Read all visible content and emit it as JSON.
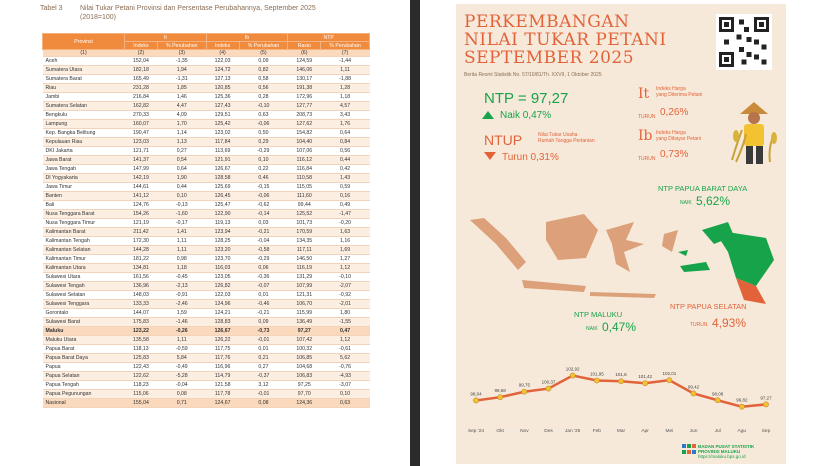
{
  "table": {
    "tabel_no": "Tabel 3",
    "caption": "Nilai Tukar Petani Provinsi dan Persentase Perubahannya, September 2025",
    "caption_sub": "(2018=100)",
    "header_top": [
      "Provinsi",
      "It",
      "Ib",
      "NTP"
    ],
    "header_sub": [
      "Indeks",
      "% Perubahan",
      "Indeks",
      "% Perubahan",
      "Rasio",
      "% Perubahan"
    ],
    "header_idx": [
      "(1)",
      "(2)",
      "(3)",
      "(4)",
      "(5)",
      "(6)",
      "(7)"
    ],
    "rows": [
      [
        "Aceh",
        "152,04",
        "-1,35",
        "122,03",
        "0,09",
        "124,59",
        "-1,44"
      ],
      [
        "Sumatera Utara",
        "182,18",
        "1,94",
        "124,72",
        "0,82",
        "146,06",
        "1,11"
      ],
      [
        "Sumatera Barat",
        "165,49",
        "-1,31",
        "127,13",
        "0,58",
        "130,17",
        "-1,88"
      ],
      [
        "Riau",
        "231,28",
        "1,85",
        "120,85",
        "0,56",
        "191,38",
        "1,28"
      ],
      [
        "Jambi",
        "216,84",
        "1,46",
        "125,36",
        "0,28",
        "172,96",
        "1,18"
      ],
      [
        "Sumatera Selatan",
        "162,82",
        "4,47",
        "127,43",
        "-0,10",
        "127,77",
        "4,57"
      ],
      [
        "Bengkulu",
        "270,33",
        "4,09",
        "129,51",
        "0,63",
        "208,73",
        "3,43"
      ],
      [
        "Lampung",
        "160,07",
        "1,70",
        "125,42",
        "-0,06",
        "127,62",
        "1,76"
      ],
      [
        "Kep. Bangka Belitung",
        "190,47",
        "1,14",
        "123,02",
        "0,50",
        "154,82",
        "0,64"
      ],
      [
        "Kepulauan Riau",
        "123,03",
        "1,13",
        "117,84",
        "0,29",
        "104,40",
        "0,84"
      ],
      [
        "DKI Jakarta",
        "121,71",
        "0,27",
        "113,69",
        "-0,29",
        "107,06",
        "0,56"
      ],
      [
        "Jawa Barat",
        "141,37",
        "0,54",
        "121,91",
        "0,10",
        "116,12",
        "0,44"
      ],
      [
        "Jawa Tengah",
        "147,99",
        "0,64",
        "126,67",
        "0,22",
        "116,84",
        "0,42"
      ],
      [
        "DI Yogyakarta",
        "142,19",
        "1,90",
        "128,58",
        "0,46",
        "110,58",
        "1,43"
      ],
      [
        "Jawa Timur",
        "144,61",
        "0,44",
        "125,69",
        "-0,15",
        "115,05",
        "0,59"
      ],
      [
        "Banten",
        "141,12",
        "0,10",
        "126,45",
        "-0,06",
        "111,60",
        "0,16"
      ],
      [
        "Bali",
        "124,76",
        "-0,13",
        "125,47",
        "-0,62",
        "99,44",
        "0,49"
      ],
      [
        "Nusa Tenggara Barat",
        "154,26",
        "-1,60",
        "122,90",
        "-0,14",
        "125,52",
        "-1,47"
      ],
      [
        "Nusa Tenggara Timur",
        "121,19",
        "-0,17",
        "119,13",
        "0,03",
        "101,73",
        "-0,20"
      ],
      [
        "Kalimantan Barat",
        "211,42",
        "1,41",
        "123,94",
        "-0,21",
        "170,59",
        "1,63"
      ],
      [
        "Kalimantan Tengah",
        "172,30",
        "1,11",
        "128,25",
        "-0,04",
        "134,35",
        "1,16"
      ],
      [
        "Kalimantan Selatan",
        "144,28",
        "1,11",
        "123,20",
        "-0,58",
        "117,11",
        "1,69"
      ],
      [
        "Kalimantan Timur",
        "181,22",
        "0,98",
        "123,70",
        "-0,29",
        "146,50",
        "1,27"
      ],
      [
        "Kalimantan Utara",
        "134,81",
        "1,18",
        "116,03",
        "0,06",
        "116,19",
        "1,12"
      ],
      [
        "Sulawesi Utara",
        "161,56",
        "-0,45",
        "123,05",
        "-0,36",
        "131,29",
        "-0,10"
      ],
      [
        "Sulawesi Tengah",
        "136,96",
        "-2,13",
        "126,82",
        "-0,07",
        "107,99",
        "-2,07"
      ],
      [
        "Sulawesi Selatan",
        "148,03",
        "-0,91",
        "122,03",
        "0,01",
        "121,31",
        "-0,92"
      ],
      [
        "Sulawesi Tenggara",
        "133,33",
        "-2,46",
        "124,96",
        "-0,46",
        "106,70",
        "-2,01"
      ],
      [
        "Gorontalo",
        "144,07",
        "1,59",
        "124,21",
        "-0,21",
        "115,99",
        "1,80"
      ],
      [
        "Sulawesi Barat",
        "175,83",
        "-1,46",
        "128,83",
        "0,09",
        "136,49",
        "-1,55"
      ],
      [
        "Maluku",
        "123,22",
        "-0,26",
        "126,67",
        "-0,73",
        "97,27",
        "0,47"
      ],
      [
        "Maluku Utara",
        "135,58",
        "1,11",
        "126,22",
        "-0,01",
        "107,42",
        "1,12"
      ],
      [
        "Papua Barat",
        "118,13",
        "-0,59",
        "117,75",
        "0,01",
        "100,32",
        "-0,61"
      ],
      [
        "Papua Barat Daya",
        "125,83",
        "5,84",
        "117,76",
        "0,21",
        "106,85",
        "5,62"
      ],
      [
        "Papua",
        "122,43",
        "-0,49",
        "116,96",
        "0,27",
        "104,68",
        "-0,76"
      ],
      [
        "Papua Selatan",
        "122,62",
        "-5,28",
        "114,79",
        "-0,37",
        "106,83",
        "-4,93"
      ],
      [
        "Papua Tengah",
        "118,23",
        "-0,04",
        "121,58",
        "3,12",
        "97,25",
        "-3,07"
      ],
      [
        "Papua Pegunungan",
        "115,06",
        "0,08",
        "117,78",
        "-0,01",
        "97,70",
        "0,10"
      ],
      [
        "Nasional",
        "155,04",
        "0,71",
        "124,67",
        "0,08",
        "124,36",
        "0,63"
      ]
    ]
  },
  "infographic": {
    "title_lines": [
      "PERKEMBANGAN",
      "NILAI TUKAR PETANI",
      "SEPTEMBER 2025"
    ],
    "brs": "Berita Resmi Statistik No. 57/10/81/Th. XXVII, 1 Oktober 2025",
    "ntp_label": "NTP = 97,27",
    "ntp_change": "Naik 0,47%",
    "ntup_label": "NTUP",
    "ntup_desc_1": "Nilai Tukar Usaha",
    "ntup_desc_2": "Rumah Tangga Pertanian",
    "ntup_change": "Turun 0,31%",
    "it_letter": "It",
    "it_desc_1": "Indeks Harga",
    "it_desc_2": "yang Diterima Petani",
    "it_dir": "TURUN",
    "it_val": "0,26%",
    "ib_letter": "Ib",
    "ib_desc_1": "Indeks Harga",
    "ib_desc_2": "yang Dibayar Petani",
    "ib_dir": "TURUN",
    "ib_val": "0,73%",
    "callout_pbd_label": "NTP PAPUA BARAT DAYA",
    "callout_pbd_dir": "NAIK",
    "callout_pbd_val": "5,62%",
    "callout_maluku_label": "NTP MALUKU",
    "callout_maluku_dir": "NAIK",
    "callout_maluku_val": "0,47%",
    "callout_ps_label": "NTP PAPUA SELATAN",
    "callout_ps_dir": "TURUN",
    "callout_ps_val": "4,93%",
    "footer_1": "BADAN PUSAT STATISTIK",
    "footer_2": "PROVINSI MALUKU",
    "footer_3": "https://maluku.bps.go.id",
    "colors": {
      "orange": "#e2633a",
      "green": "#17a34a",
      "bg": "#f6e9d9",
      "table_header": "#f08a3c"
    }
  },
  "chart_data": {
    "type": "line",
    "categories": [
      "Sep '24",
      "Okt",
      "Nov",
      "Des",
      "Jan '25",
      "Feb",
      "Mar",
      "Apr",
      "Mei",
      "Jun",
      "Jul",
      "Agu",
      "Sep"
    ],
    "values": [
      98.04,
      98.68,
      99.75,
      100.37,
      102.92,
      101.95,
      101.8,
      101.42,
      102.01,
      99.42,
      98.08,
      96.82,
      97.27
    ],
    "labels": [
      "98,04",
      "98,68",
      "99,75",
      "100,37",
      "102,92",
      "101,95",
      "101,8",
      "101,42",
      "102,01",
      "99,42",
      "98,08",
      "96,82",
      "97,27"
    ],
    "ylim": [
      95,
      104
    ]
  }
}
